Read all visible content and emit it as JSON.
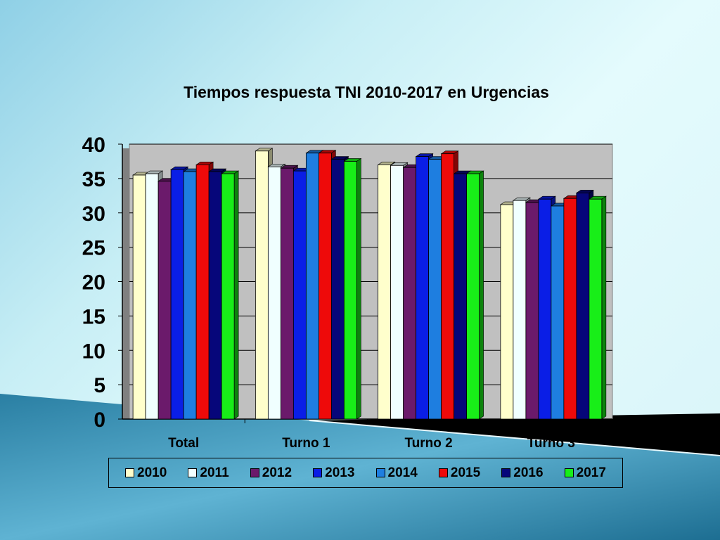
{
  "chart_data": {
    "type": "bar",
    "title": "Tiempos respuesta TNI 2010-2017 en Urgencias",
    "xlabel": "",
    "ylabel": "",
    "ylim": [
      0,
      40
    ],
    "yticks": [
      "0",
      "5",
      "10",
      "15",
      "20",
      "25",
      "30",
      "35",
      "40"
    ],
    "grid": true,
    "legend_position": "bottom",
    "categories": [
      "Total",
      "Turno 1",
      "Turno 2",
      "Turno 3"
    ],
    "series": [
      {
        "name": "2010",
        "color": "#ffffcc",
        "values": [
          35.5,
          39.0,
          37.0,
          31.2
        ]
      },
      {
        "name": "2011",
        "color": "#f0ffff",
        "values": [
          35.7,
          36.7,
          36.9,
          31.8
        ]
      },
      {
        "name": "2012",
        "color": "#6b1a6b",
        "values": [
          34.6,
          36.5,
          36.6,
          31.5
        ]
      },
      {
        "name": "2013",
        "color": "#0a1ee6",
        "values": [
          36.3,
          36.1,
          38.2,
          32.0
        ]
      },
      {
        "name": "2014",
        "color": "#1e7ee0",
        "values": [
          36.0,
          38.7,
          37.8,
          31.0
        ]
      },
      {
        "name": "2015",
        "color": "#ee0a0a",
        "values": [
          37.0,
          38.7,
          38.6,
          32.1
        ]
      },
      {
        "name": "2016",
        "color": "#06067a",
        "values": [
          36.0,
          37.8,
          35.7,
          32.9
        ]
      },
      {
        "name": "2017",
        "color": "#18ee18",
        "values": [
          35.7,
          37.5,
          35.7,
          32.0
        ]
      }
    ]
  }
}
